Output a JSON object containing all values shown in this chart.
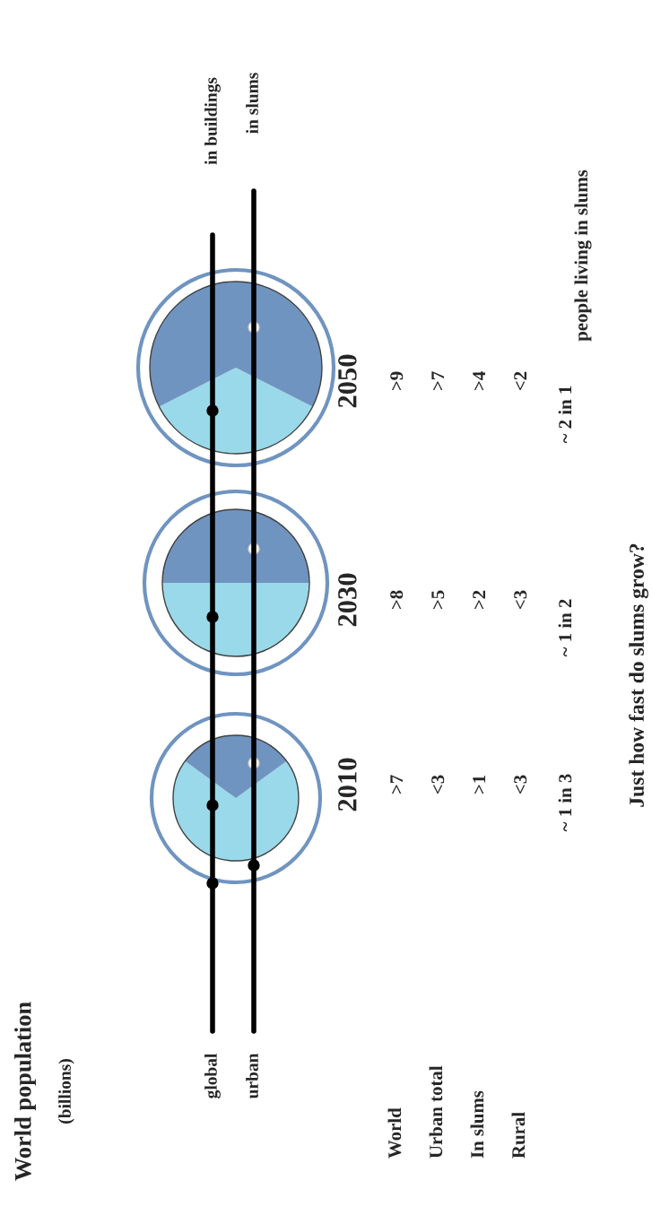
{
  "chart_data": [
    {
      "type": "other",
      "title": "World population",
      "subtitle": "(billions)",
      "annotations": [
        "global",
        "urban",
        "in buildings",
        "in slums",
        "World",
        "Urban total",
        "In slums",
        "Rural",
        "Just how fast do slums grow?"
      ]
    },
    {
      "type": "pie",
      "title": "2050",
      "categories": [
        null,
        null
      ],
      "values": [
        35,
        65
      ],
      "colors": [
        "#99d9ea",
        "#7094c0"
      ],
      "annotations": [
        ">9",
        ">7",
        ">4",
        "<2",
        "~ 2 in 1",
        "people living in slums"
      ]
    },
    {
      "type": "pie",
      "title": "2030",
      "categories": [
        null,
        null
      ],
      "values": [
        50,
        50
      ],
      "colors": [
        "#99d9ea",
        "#7094c0"
      ],
      "annotations": [
        ">8",
        ">5",
        ">2",
        "<3",
        "~ 1 in 2"
      ]
    },
    {
      "type": "pie",
      "title": "2010",
      "categories": [
        null,
        null
      ],
      "values": [
        70,
        30
      ],
      "colors": [
        "#99d9ea",
        "#7094c0"
      ],
      "annotations": [
        ">7",
        "<3",
        ">1",
        "<3",
        "~ 1 in 3"
      ]
    }
  ]
}
